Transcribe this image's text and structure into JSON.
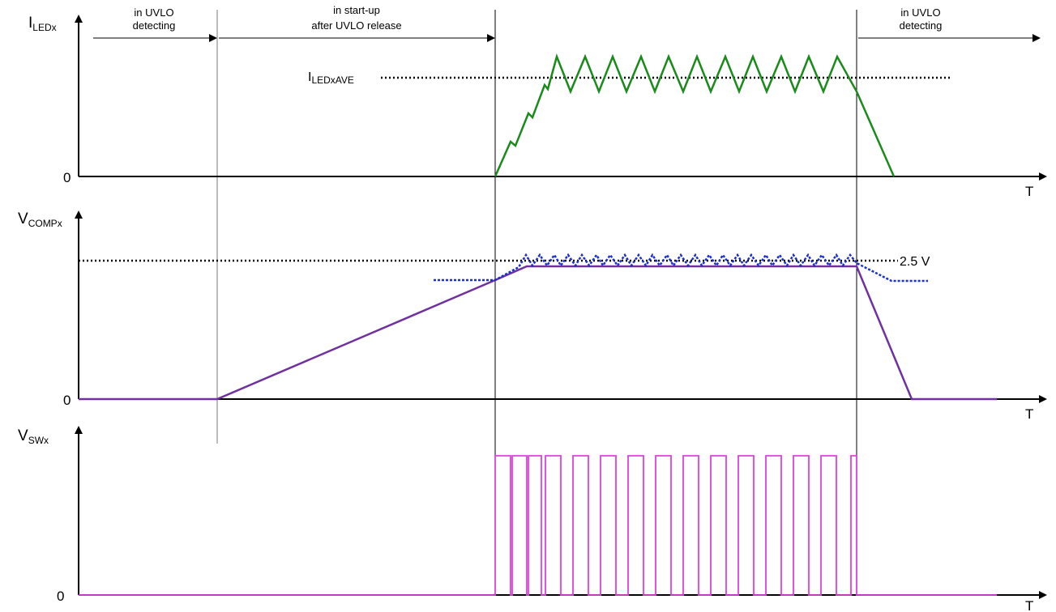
{
  "phases": {
    "uvlo_before_line1": "in UVLO",
    "uvlo_before_line2": "detecting",
    "startup_line1": "in start-up",
    "startup_line2": "after UVLO release",
    "uvlo_after_line1": "in UVLO",
    "uvlo_after_line2": "detecting"
  },
  "panels": {
    "iled": {
      "y_label_main": "I",
      "y_label_sub": "LEDx",
      "zero_label": "0",
      "t_label": "T",
      "ref_label_main": "I",
      "ref_label_sub": "LEDxAVE"
    },
    "vcomp": {
      "y_label_main": "V",
      "y_label_sub": "COMPx",
      "zero_label": "0",
      "t_label": "T",
      "ref_label": "2.5 V"
    },
    "vsw": {
      "y_label_main": "V",
      "y_label_sub": "SWx",
      "zero_label": "0",
      "t_label": "T"
    }
  },
  "colors": {
    "iled_trace": "#1a8a1a",
    "vcomp_trace": "#7030a0",
    "vcomp_ripple": "#1a2fd0",
    "vsw_trace": "#e040e0",
    "reference": "#000000",
    "axis": "#000000",
    "phase_divider": "#7a7a7a"
  }
}
